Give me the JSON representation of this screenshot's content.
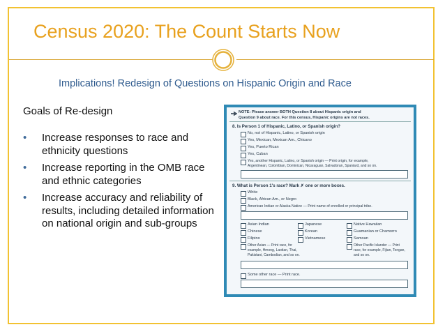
{
  "slide": {
    "title": "Census 2020: The Count Starts Now",
    "subtitle": "Implications!  Redesign of Questions on Hispanic Origin and Race",
    "goals_heading": "Goals of Re-design",
    "bullets": [
      "Increase responses to race and ethnicity questions",
      "Increase reporting in the OMB race and ethnic categories",
      "Increase accuracy and reliability of results, including detailed information on national origin and sub-groups"
    ],
    "bullet_symbol": "•",
    "colors": {
      "title": "#e8a11e",
      "subtitle": "#2f5b8e",
      "border": "#f2c232",
      "form_frame": "#2f8ab5"
    }
  },
  "form": {
    "note_line1": "NOTE: Please answer BOTH Question 8 about Hispanic origin and",
    "note_line2": "Question 9 about race. For this census, Hispanic origins are not races.",
    "q8_label": "8.  Is Person 1 of Hispanic, Latino, or Spanish origin?",
    "q8_options": [
      "No, not of Hispanic, Latino, or Spanish origin",
      "Yes, Mexican, Mexican Am., Chicano",
      "Yes, Puerto Rican",
      "Yes, Cuban",
      "Yes, another Hispanic, Latino, or Spanish origin — Print origin, for example,"
    ],
    "q8_example": "Argentinean, Colombian, Dominican, Nicaraguan, Salvadoran, Spaniard, and so on.",
    "q9_label": "9.  What is Person 1's race? Mark ✗ one or more boxes.",
    "q9_options": [
      "White",
      "Black, African Am., or Negro",
      "American Indian or Alaska Native — Print name of enrolled or principal tribe."
    ],
    "asian_col1": [
      "Asian Indian",
      "Chinese",
      "Filipino",
      "Other Asian — Print race, for"
    ],
    "asian_col1_extra": [
      "example, Hmong, Laotian, Thai,",
      "Pakistani, Cambodian, and so on."
    ],
    "asian_col2": [
      "Japanese",
      "Korean",
      "Vietnamese"
    ],
    "asian_col3": [
      "Native Hawaiian",
      "Guamanian or Chamorro",
      "Samoan",
      "Other Pacific Islander — Print"
    ],
    "asian_col3_extra": [
      "race, for example, Fijian, Tongan,",
      "and so on."
    ],
    "some_other": "Some other race — Print race."
  }
}
